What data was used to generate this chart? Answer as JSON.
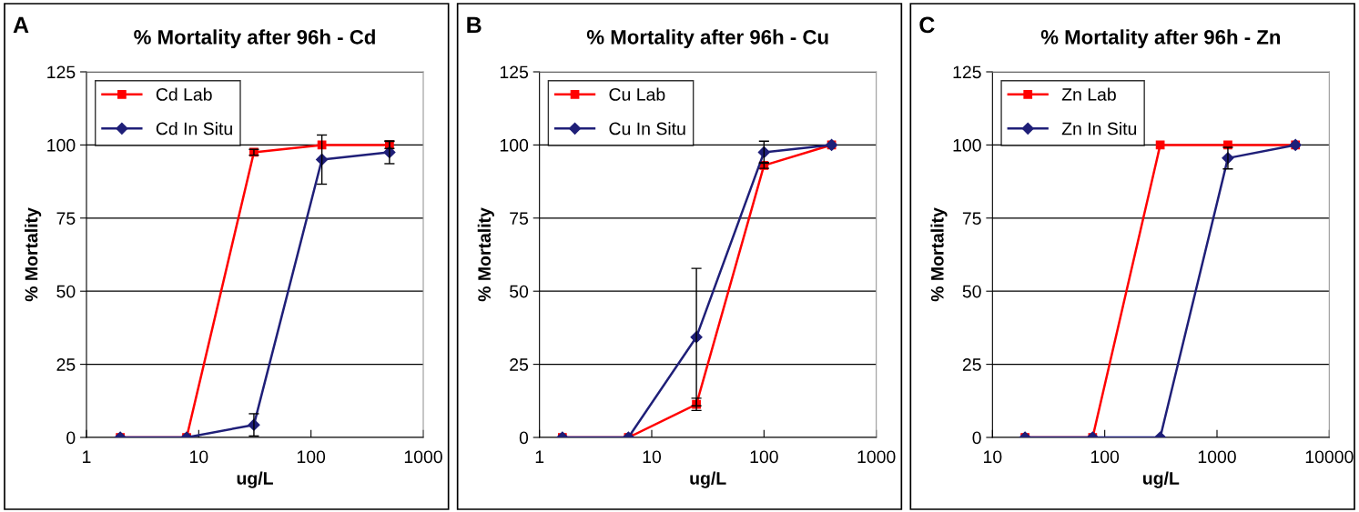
{
  "chart_data": [
    {
      "type": "line",
      "title": "% Mortality after 96h - Cd",
      "xlabel": "ug/L",
      "ylabel": "% Mortality",
      "annotations": [
        "A"
      ],
      "log": "x",
      "xlim": [
        1,
        1000
      ],
      "xticks": [
        1,
        10,
        100,
        1000
      ],
      "ylim": [
        0,
        125
      ],
      "yticks": [
        0,
        25,
        50,
        75,
        100,
        125
      ],
      "grid": "y",
      "legend": "top left",
      "x": [
        2,
        7.8,
        31,
        125,
        500
      ],
      "series": [
        {
          "name": "Cd Lab",
          "color": "#ff0000",
          "marker": "square",
          "values": [
            0,
            0,
            97.5,
            100,
            100
          ],
          "errors": [
            null,
            null,
            1,
            null,
            1.2
          ]
        },
        {
          "name": "Cd In Situ",
          "color": "#1f1f78",
          "marker": "diamond",
          "values": [
            0,
            0,
            4.3,
            95,
            97.5
          ],
          "errors": [
            null,
            null,
            3.8,
            8.4,
            3.9
          ]
        }
      ]
    },
    {
      "type": "line",
      "title": "% Mortality after 96h - Cu",
      "xlabel": "ug/L",
      "ylabel": "% Mortality",
      "annotations": [
        "B"
      ],
      "log": "x",
      "xlim": [
        1,
        1000
      ],
      "xticks": [
        1,
        10,
        100,
        1000
      ],
      "ylim": [
        0,
        125
      ],
      "yticks": [
        0,
        25,
        50,
        75,
        100,
        125
      ],
      "grid": "y",
      "legend": "top left",
      "x": [
        1.6,
        6.2,
        25,
        100,
        400
      ],
      "series": [
        {
          "name": "Cu Lab",
          "color": "#ff0000",
          "marker": "square",
          "values": [
            0,
            0,
            11.3,
            93,
            100
          ],
          "errors": [
            null,
            null,
            2.1,
            1,
            null
          ]
        },
        {
          "name": "Cu In Situ",
          "color": "#1f1f78",
          "marker": "diamond",
          "values": [
            0,
            0,
            34.3,
            97.5,
            100
          ],
          "errors": [
            null,
            null,
            23.5,
            3.8,
            null
          ]
        }
      ]
    },
    {
      "type": "line",
      "title": "% Mortality after 96h - Zn",
      "xlabel": "ug/L",
      "ylabel": "% Mortality",
      "annotations": [
        "C"
      ],
      "log": "x",
      "xlim": [
        10,
        10000
      ],
      "xticks": [
        10,
        100,
        1000,
        10000
      ],
      "ylim": [
        0,
        125
      ],
      "yticks": [
        0,
        25,
        50,
        75,
        100,
        125
      ],
      "grid": "y",
      "legend": "top left",
      "x": [
        19.5,
        78,
        312,
        1250,
        5000
      ],
      "series": [
        {
          "name": "Zn Lab",
          "color": "#ff0000",
          "marker": "square",
          "values": [
            0,
            0,
            100,
            100,
            100
          ]
        },
        {
          "name": "Zn In Situ",
          "color": "#1f1f78",
          "marker": "diamond",
          "values": [
            0,
            0,
            0,
            95.5,
            100
          ],
          "errors": [
            null,
            null,
            null,
            3.7,
            null
          ]
        }
      ]
    }
  ]
}
